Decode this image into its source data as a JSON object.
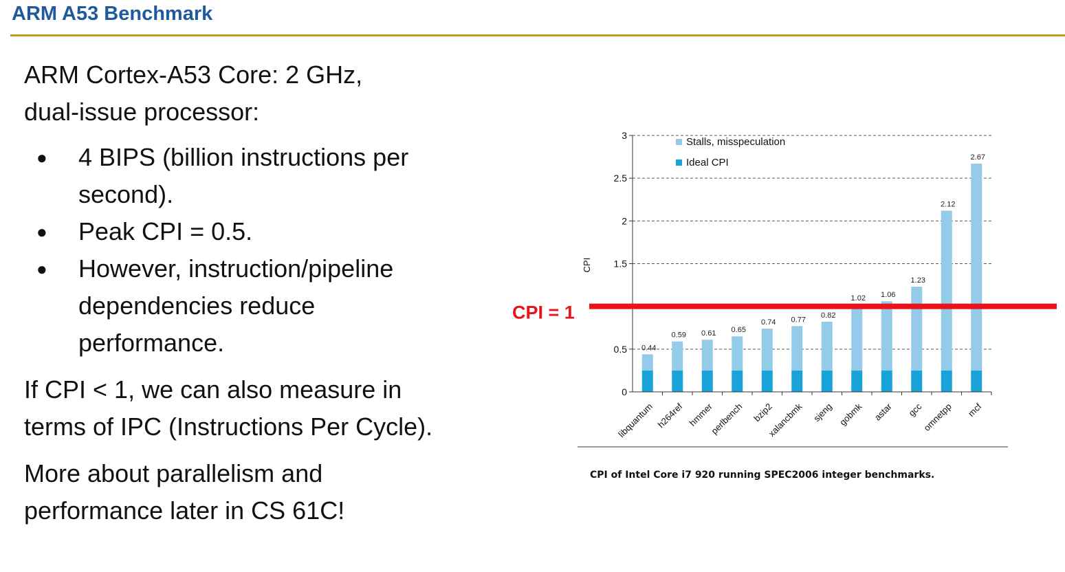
{
  "slide": {
    "title": "ARM A53 Benchmark",
    "intro_line1": "ARM Cortex-A53 Core: 2 GHz,",
    "intro_line2": "dual-issue processor:",
    "bullets": [
      {
        "line1": "4 BIPS (billion instructions per",
        "line2": "second)."
      },
      {
        "line1": "Peak CPI = 0.5."
      },
      {
        "line1": "However, instruction/pipeline",
        "line2": "dependencies reduce",
        "line3": "performance."
      }
    ],
    "ipc_line1": "If CPI < 1, we can also measure in",
    "ipc_line2": "terms of IPC (Instructions Per Cycle).",
    "more_line1": "More about parallelism and",
    "more_line2": "performance later in CS 61C!"
  },
  "chart_data": {
    "type": "bar",
    "stacked": true,
    "categories": [
      "libquantum",
      "h264ref",
      "hmmer",
      "perlbench",
      "bzip2",
      "xalancbmk",
      "sjeng",
      "gobmk",
      "astar",
      "gcc",
      "omnetpp",
      "mcf"
    ],
    "totals": [
      0.44,
      0.59,
      0.61,
      0.65,
      0.74,
      0.77,
      0.82,
      1.02,
      1.06,
      1.23,
      2.12,
      2.67
    ],
    "total_labels": [
      "0.44",
      "0.59",
      "0.61",
      "0.65",
      "0.74",
      "0.77",
      "0.82",
      "1.02",
      "1.06",
      "1.23",
      "2.12",
      "2.67"
    ],
    "series": [
      {
        "name": "Ideal CPI",
        "color": "#1aa3d9",
        "values": [
          0.25,
          0.25,
          0.25,
          0.25,
          0.25,
          0.25,
          0.25,
          0.25,
          0.25,
          0.25,
          0.25,
          0.25
        ]
      },
      {
        "name": "Stalls, misspeculation",
        "color": "#93cbe8",
        "values": [
          0.19,
          0.34,
          0.36,
          0.4,
          0.49,
          0.52,
          0.57,
          0.77,
          0.81,
          0.98,
          1.87,
          2.42
        ]
      }
    ],
    "legend_order": [
      "Stalls, misspeculation",
      "Ideal CPI"
    ],
    "legend_position": "top-left",
    "ylabel": "CPI",
    "ylim": [
      0,
      3
    ],
    "yticks": [
      0,
      0.5,
      1,
      1.5,
      2,
      2.5,
      3
    ],
    "ytick_labels": [
      "0",
      "0.5",
      "",
      "1.5",
      "2",
      "2.5",
      "3"
    ],
    "grid": "dashed horizontal",
    "caption": "CPI of Intel Core i7 920 running SPEC2006 integer benchmarks.",
    "annotation": {
      "label": "CPI = 1",
      "y": 1,
      "color": "#e8141a"
    }
  }
}
